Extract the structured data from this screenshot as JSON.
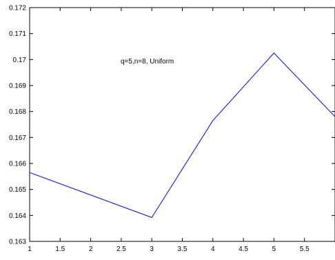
{
  "chart_data": {
    "type": "line",
    "title": "",
    "xlabel": "",
    "ylabel": "",
    "xlim": [
      1,
      6
    ],
    "ylim": [
      0.163,
      0.172
    ],
    "xticks": [
      1,
      1.5,
      2,
      2.5,
      3,
      3.5,
      4,
      4.5,
      5,
      5.5
    ],
    "xtick_labels": [
      "1",
      "1.5",
      "2",
      "2.5",
      "3",
      "3.5",
      "4",
      "4.5",
      "5",
      "5.5"
    ],
    "yticks": [
      0.163,
      0.164,
      0.165,
      0.166,
      0.167,
      0.168,
      0.169,
      0.17,
      0.171,
      0.172
    ],
    "ytick_labels": [
      "0.163",
      "0.164",
      "0.165",
      "0.166",
      "0.167",
      "0.168",
      "0.169",
      "0.17",
      "0.171",
      "0.172"
    ],
    "grid": false,
    "annotation": "q=5,n=8, Uniform",
    "series": [
      {
        "color": "#0000ff",
        "x": [
          1,
          3,
          4,
          5,
          6
        ],
        "y": [
          0.16565,
          0.16392,
          0.16765,
          0.17025,
          0.1678
        ]
      }
    ]
  }
}
